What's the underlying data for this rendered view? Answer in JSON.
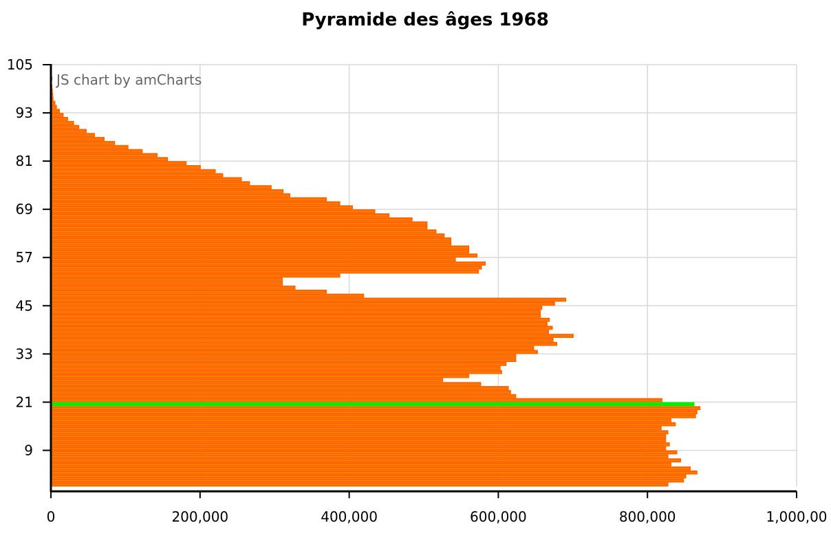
{
  "chart_data": {
    "type": "bar",
    "orientation": "horizontal",
    "title": "Pyramide des âges 1968",
    "credit": "JS chart by amCharts",
    "xlabel": "",
    "ylabel": "",
    "xlim": [
      0,
      1000000
    ],
    "ylim": [
      0,
      105
    ],
    "x_ticks": [
      0,
      200000,
      400000,
      600000,
      800000,
      1000000
    ],
    "x_tick_labels": [
      "0",
      "200,000",
      "400,000",
      "600,000",
      "800,000",
      "1,000,00"
    ],
    "y_ticks": [
      9,
      21,
      33,
      45,
      57,
      69,
      81,
      93,
      105
    ],
    "y_tick_labels": [
      "9",
      "21",
      "33",
      "45",
      "57",
      "69",
      "81",
      "93",
      "105"
    ],
    "grid": true,
    "colors": {
      "bar": "#ff6600",
      "bar_stripe": "#ff8800",
      "highlight": "#00ee00",
      "grid": "#d9d9d9",
      "axis": "#000000"
    },
    "highlight_age": 20,
    "ages": [
      0,
      1,
      2,
      3,
      4,
      5,
      6,
      7,
      8,
      9,
      10,
      11,
      12,
      13,
      14,
      15,
      16,
      17,
      18,
      19,
      20,
      21,
      22,
      23,
      24,
      25,
      26,
      27,
      28,
      29,
      30,
      31,
      32,
      33,
      34,
      35,
      36,
      37,
      38,
      39,
      40,
      41,
      42,
      43,
      44,
      45,
      46,
      47,
      48,
      49,
      50,
      51,
      52,
      53,
      54,
      55,
      56,
      57,
      58,
      59,
      60,
      61,
      62,
      63,
      64,
      65,
      66,
      67,
      68,
      69,
      70,
      71,
      72,
      73,
      74,
      75,
      76,
      77,
      78,
      79,
      80,
      81,
      82,
      83,
      84,
      85,
      86,
      87,
      88,
      89,
      90,
      91,
      92,
      93,
      94,
      95,
      96,
      97,
      98,
      99,
      100,
      101
    ],
    "values": [
      828000,
      849000,
      852000,
      867000,
      858000,
      832000,
      845000,
      828000,
      840000,
      825000,
      830000,
      825000,
      825000,
      828000,
      819000,
      838000,
      832000,
      865000,
      867000,
      871000,
      863000,
      820000,
      624000,
      617000,
      614000,
      577000,
      526000,
      561000,
      605000,
      603000,
      611000,
      624000,
      624000,
      653000,
      648000,
      679000,
      674000,
      701000,
      668000,
      673000,
      666000,
      669000,
      657000,
      657000,
      659000,
      676000,
      691000,
      420000,
      370000,
      328000,
      311000,
      311000,
      388000,
      574000,
      578000,
      583000,
      543000,
      572000,
      561000,
      561000,
      537000,
      537000,
      528000,
      517000,
      505000,
      505000,
      485000,
      454000,
      435000,
      405000,
      388000,
      370000,
      321000,
      312000,
      296000,
      267000,
      256000,
      231000,
      221000,
      201000,
      182000,
      157000,
      143000,
      123000,
      104000,
      86000,
      72000,
      59000,
      48000,
      38000,
      31000,
      23000,
      17000,
      12000,
      8000,
      6000,
      3500,
      3000,
      2500,
      2000,
      0,
      2000
    ]
  }
}
